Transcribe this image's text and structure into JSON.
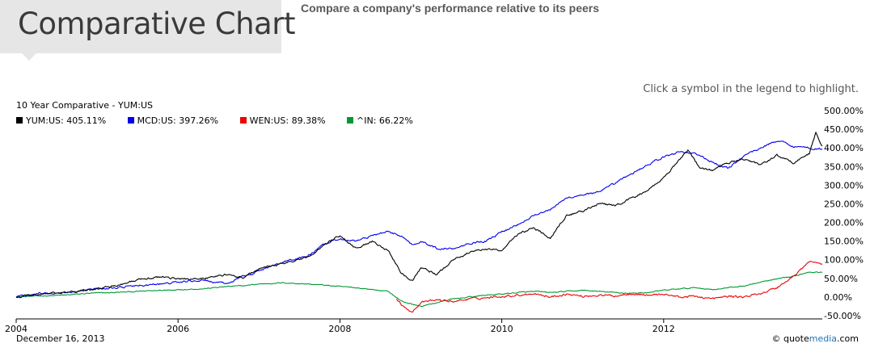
{
  "header": {
    "title": "Comparative Chart",
    "subtitle": "Compare a company's performance relative to its peers"
  },
  "hint": "Click a symbol in the legend to highlight.",
  "footer": {
    "date": "December 16, 2013",
    "credit_prefix": "© quote",
    "credit_brand": "media",
    "credit_suffix": ".com"
  },
  "colors": {
    "YUM": "#000000",
    "MCD": "#0000ee",
    "WEN": "#ee0000",
    "IN": "#009933"
  },
  "chart_data": {
    "type": "line",
    "title": "10 Year Comparative - YUM:US",
    "ylim": [
      -50,
      500
    ],
    "xlim": [
      2004.0,
      2013.96
    ],
    "y_ticks": [
      -50,
      0,
      50,
      100,
      150,
      200,
      250,
      300,
      350,
      400,
      450,
      500
    ],
    "y_tick_labels": [
      "-50.00%",
      "0.00%",
      "50.00%",
      "100.00%",
      "150.00%",
      "200.00%",
      "250.00%",
      "300.00%",
      "350.00%",
      "400.00%",
      "450.00%",
      "500.00%"
    ],
    "x_ticks": [
      2004,
      2006,
      2008,
      2010,
      2012
    ],
    "x_tick_labels": [
      "2004",
      "2006",
      "2008",
      "2010",
      "2012"
    ],
    "grid": false,
    "legend_position": "top-left",
    "series": [
      {
        "name": "YUM:US",
        "legend_label": "YUM:US: 405.11%",
        "color": "#000000",
        "points": [
          [
            2004.0,
            0
          ],
          [
            2004.3,
            8
          ],
          [
            2004.6,
            12
          ],
          [
            2004.9,
            18
          ],
          [
            2005.2,
            30
          ],
          [
            2005.5,
            45
          ],
          [
            2005.8,
            55
          ],
          [
            2006.0,
            48
          ],
          [
            2006.3,
            50
          ],
          [
            2006.6,
            60
          ],
          [
            2006.8,
            52
          ],
          [
            2007.0,
            75
          ],
          [
            2007.3,
            90
          ],
          [
            2007.6,
            105
          ],
          [
            2007.8,
            140
          ],
          [
            2008.0,
            165
          ],
          [
            2008.2,
            130
          ],
          [
            2008.4,
            150
          ],
          [
            2008.6,
            125
          ],
          [
            2008.75,
            65
          ],
          [
            2008.9,
            45
          ],
          [
            2009.0,
            80
          ],
          [
            2009.2,
            60
          ],
          [
            2009.4,
            100
          ],
          [
            2009.6,
            120
          ],
          [
            2009.8,
            130
          ],
          [
            2010.0,
            125
          ],
          [
            2010.2,
            170
          ],
          [
            2010.4,
            185
          ],
          [
            2010.6,
            160
          ],
          [
            2010.8,
            220
          ],
          [
            2011.0,
            230
          ],
          [
            2011.2,
            250
          ],
          [
            2011.4,
            245
          ],
          [
            2011.6,
            265
          ],
          [
            2011.8,
            285
          ],
          [
            2012.0,
            320
          ],
          [
            2012.2,
            370
          ],
          [
            2012.3,
            395
          ],
          [
            2012.45,
            345
          ],
          [
            2012.6,
            340
          ],
          [
            2012.8,
            360
          ],
          [
            2013.0,
            370
          ],
          [
            2013.2,
            355
          ],
          [
            2013.4,
            380
          ],
          [
            2013.6,
            360
          ],
          [
            2013.8,
            385
          ],
          [
            2013.88,
            440
          ],
          [
            2013.96,
            405
          ]
        ]
      },
      {
        "name": "MCD:US",
        "legend_label": "MCD:US: 397.26%",
        "color": "#0000ee",
        "points": [
          [
            2004.0,
            0
          ],
          [
            2004.3,
            10
          ],
          [
            2004.6,
            12
          ],
          [
            2004.9,
            20
          ],
          [
            2005.2,
            25
          ],
          [
            2005.5,
            30
          ],
          [
            2005.8,
            35
          ],
          [
            2006.0,
            40
          ],
          [
            2006.3,
            45
          ],
          [
            2006.6,
            35
          ],
          [
            2006.8,
            55
          ],
          [
            2007.0,
            70
          ],
          [
            2007.3,
            95
          ],
          [
            2007.6,
            110
          ],
          [
            2007.8,
            140
          ],
          [
            2008.0,
            155
          ],
          [
            2008.2,
            150
          ],
          [
            2008.4,
            165
          ],
          [
            2008.6,
            175
          ],
          [
            2008.75,
            165
          ],
          [
            2008.9,
            140
          ],
          [
            2009.0,
            150
          ],
          [
            2009.2,
            130
          ],
          [
            2009.4,
            130
          ],
          [
            2009.6,
            145
          ],
          [
            2009.8,
            150
          ],
          [
            2010.0,
            175
          ],
          [
            2010.2,
            195
          ],
          [
            2010.4,
            220
          ],
          [
            2010.6,
            235
          ],
          [
            2010.8,
            265
          ],
          [
            2011.0,
            275
          ],
          [
            2011.2,
            280
          ],
          [
            2011.4,
            305
          ],
          [
            2011.6,
            330
          ],
          [
            2011.8,
            355
          ],
          [
            2012.0,
            375
          ],
          [
            2012.2,
            390
          ],
          [
            2012.4,
            385
          ],
          [
            2012.6,
            360
          ],
          [
            2012.8,
            345
          ],
          [
            2013.0,
            380
          ],
          [
            2013.2,
            400
          ],
          [
            2013.4,
            420
          ],
          [
            2013.6,
            405
          ],
          [
            2013.8,
            400
          ],
          [
            2013.96,
            397
          ]
        ]
      },
      {
        "name": "WEN:US",
        "legend_label": "WEN:US: 89.38%",
        "color": "#ee0000",
        "points": [
          [
            2008.7,
            -5
          ],
          [
            2008.8,
            -30
          ],
          [
            2008.9,
            -38
          ],
          [
            2009.0,
            -15
          ],
          [
            2009.2,
            -8
          ],
          [
            2009.4,
            -12
          ],
          [
            2009.6,
            -5
          ],
          [
            2009.8,
            -2
          ],
          [
            2010.0,
            2
          ],
          [
            2010.2,
            5
          ],
          [
            2010.4,
            10
          ],
          [
            2010.6,
            0
          ],
          [
            2010.8,
            8
          ],
          [
            2011.0,
            2
          ],
          [
            2011.2,
            5
          ],
          [
            2011.4,
            3
          ],
          [
            2011.6,
            10
          ],
          [
            2011.8,
            5
          ],
          [
            2012.0,
            8
          ],
          [
            2012.2,
            0
          ],
          [
            2012.4,
            2
          ],
          [
            2012.6,
            -5
          ],
          [
            2012.8,
            2
          ],
          [
            2013.0,
            0
          ],
          [
            2013.2,
            10
          ],
          [
            2013.4,
            25
          ],
          [
            2013.6,
            55
          ],
          [
            2013.8,
            95
          ],
          [
            2013.96,
            89
          ]
        ]
      },
      {
        "name": "^IN",
        "legend_label": "^IN: 66.22%",
        "color": "#009933",
        "points": [
          [
            2004.0,
            0
          ],
          [
            2004.3,
            3
          ],
          [
            2004.6,
            5
          ],
          [
            2004.9,
            10
          ],
          [
            2005.2,
            12
          ],
          [
            2005.5,
            15
          ],
          [
            2005.8,
            18
          ],
          [
            2006.0,
            20
          ],
          [
            2006.3,
            22
          ],
          [
            2006.6,
            28
          ],
          [
            2006.8,
            30
          ],
          [
            2007.0,
            35
          ],
          [
            2007.3,
            38
          ],
          [
            2007.6,
            35
          ],
          [
            2007.8,
            32
          ],
          [
            2008.0,
            28
          ],
          [
            2008.2,
            25
          ],
          [
            2008.4,
            20
          ],
          [
            2008.6,
            15
          ],
          [
            2008.75,
            -10
          ],
          [
            2008.9,
            -20
          ],
          [
            2009.0,
            -25
          ],
          [
            2009.2,
            -15
          ],
          [
            2009.4,
            -5
          ],
          [
            2009.6,
            0
          ],
          [
            2009.8,
            5
          ],
          [
            2010.0,
            8
          ],
          [
            2010.2,
            12
          ],
          [
            2010.4,
            15
          ],
          [
            2010.6,
            12
          ],
          [
            2010.8,
            15
          ],
          [
            2011.0,
            18
          ],
          [
            2011.2,
            15
          ],
          [
            2011.4,
            12
          ],
          [
            2011.6,
            10
          ],
          [
            2011.8,
            12
          ],
          [
            2012.0,
            18
          ],
          [
            2012.2,
            22
          ],
          [
            2012.4,
            25
          ],
          [
            2012.6,
            20
          ],
          [
            2012.8,
            25
          ],
          [
            2013.0,
            30
          ],
          [
            2013.2,
            40
          ],
          [
            2013.4,
            48
          ],
          [
            2013.6,
            55
          ],
          [
            2013.8,
            68
          ],
          [
            2013.96,
            66
          ]
        ]
      }
    ]
  }
}
